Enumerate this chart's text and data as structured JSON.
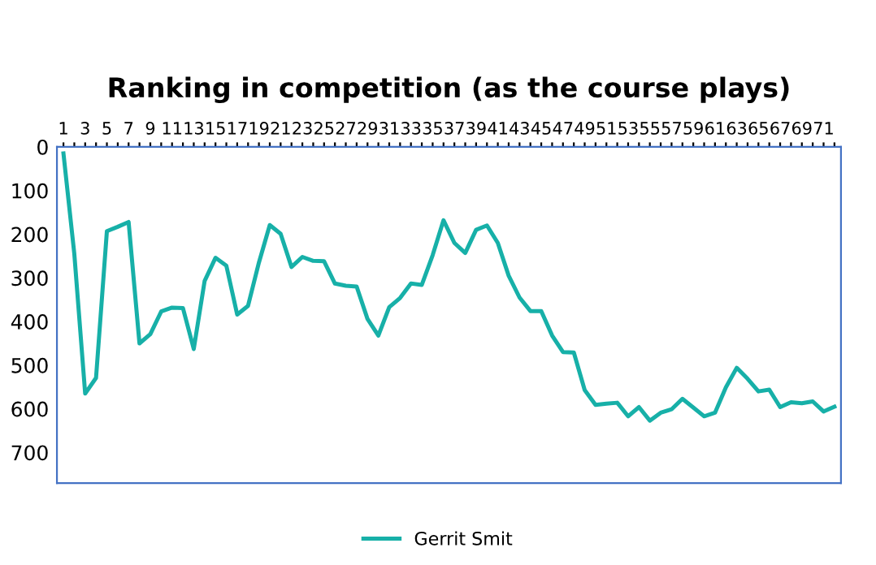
{
  "chart_data": {
    "type": "line",
    "title": "Ranking in competition (as the course plays)",
    "categories": [
      "1",
      null,
      "3",
      null,
      "5",
      null,
      "7",
      null,
      "9",
      null,
      "11",
      null,
      "13",
      null,
      "15",
      null,
      "17",
      null,
      "19",
      null,
      "21",
      null,
      "23",
      null,
      "25",
      null,
      "27",
      null,
      "29",
      null,
      "31",
      null,
      "33",
      null,
      "35",
      null,
      "37",
      null,
      "39",
      null,
      "41",
      null,
      "43",
      null,
      "45",
      null,
      "47",
      null,
      "49",
      null,
      "51",
      null,
      "53",
      null,
      "55",
      null,
      "57",
      null,
      "59",
      null,
      "61",
      null,
      "63",
      null,
      "65",
      null,
      "67",
      null,
      "69",
      null,
      "71",
      null
    ],
    "series": [
      {
        "name": "Gerrit Smit",
        "color": "#17b0a8",
        "values": [
          15,
          245,
          565,
          529,
          193,
          183,
          172,
          450,
          429,
          377,
          368,
          369,
          463,
          307,
          254,
          272,
          384,
          364,
          265,
          179,
          199,
          275,
          252,
          261,
          262,
          313,
          318,
          320,
          394,
          432,
          367,
          346,
          313,
          316,
          248,
          168,
          220,
          243,
          190,
          180,
          220,
          295,
          345,
          376,
          376,
          432,
          470,
          471,
          557,
          591,
          588,
          586,
          617,
          596,
          627,
          609,
          601,
          577,
          597,
          617,
          609,
          551,
          506,
          531,
          560,
          556,
          596,
          585,
          587,
          583,
          606,
          595
        ]
      }
    ],
    "ylim": [
      770,
      0
    ],
    "yticks": [
      0,
      100,
      200,
      300,
      400,
      500,
      600,
      700
    ],
    "grid": false,
    "legend": "bottom",
    "marker": "none",
    "line_style": "solid"
  }
}
